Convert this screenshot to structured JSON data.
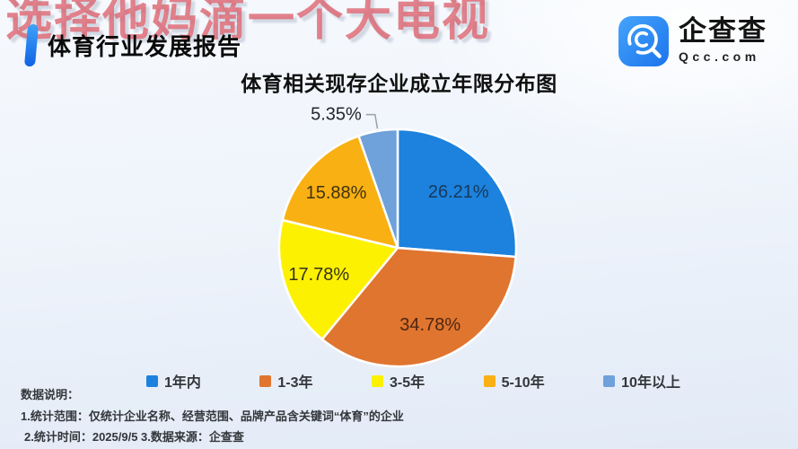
{
  "watermark": {
    "text": "选择他妈滴一个大电视"
  },
  "header": {
    "title": "体育行业发展报告",
    "accent_color": "#1063E6"
  },
  "logo": {
    "name": "企查查",
    "domain": "Qcc.com",
    "brand_color": "#2E8BF0"
  },
  "chart_data": {
    "type": "pie",
    "title": "体育相关现存企业成立年限分布图",
    "categories": [
      "1年内",
      "1-3年",
      "3-5年",
      "5-10年",
      "10年以上"
    ],
    "values": [
      26.21,
      34.78,
      17.78,
      15.88,
      5.35
    ],
    "labels": [
      "26.21%",
      "34.78%",
      "17.78%",
      "15.88%",
      "5.35%"
    ],
    "unit": "%",
    "colors": [
      "#1D82DD",
      "#E0752F",
      "#FDF102",
      "#F9B013",
      "#6FA1DB"
    ],
    "label_colors": [
      "#16395b",
      "#4f2610",
      "#35331c",
      "#403310",
      "#26262b"
    ],
    "start_angle_deg": 0,
    "direction": "clockwise",
    "labels_inside": [
      true,
      true,
      true,
      true,
      false
    ],
    "legend_position": "bottom",
    "slice_border_color": "#ffffff"
  },
  "footer": {
    "heading": "数据说明：",
    "line1": "1.统计范围：仅统计企业名称、经营范围、品牌产品含关键词“体育”的企业",
    "line2": "2.统计时间：2025/9/5  3.数据来源：企查查"
  }
}
